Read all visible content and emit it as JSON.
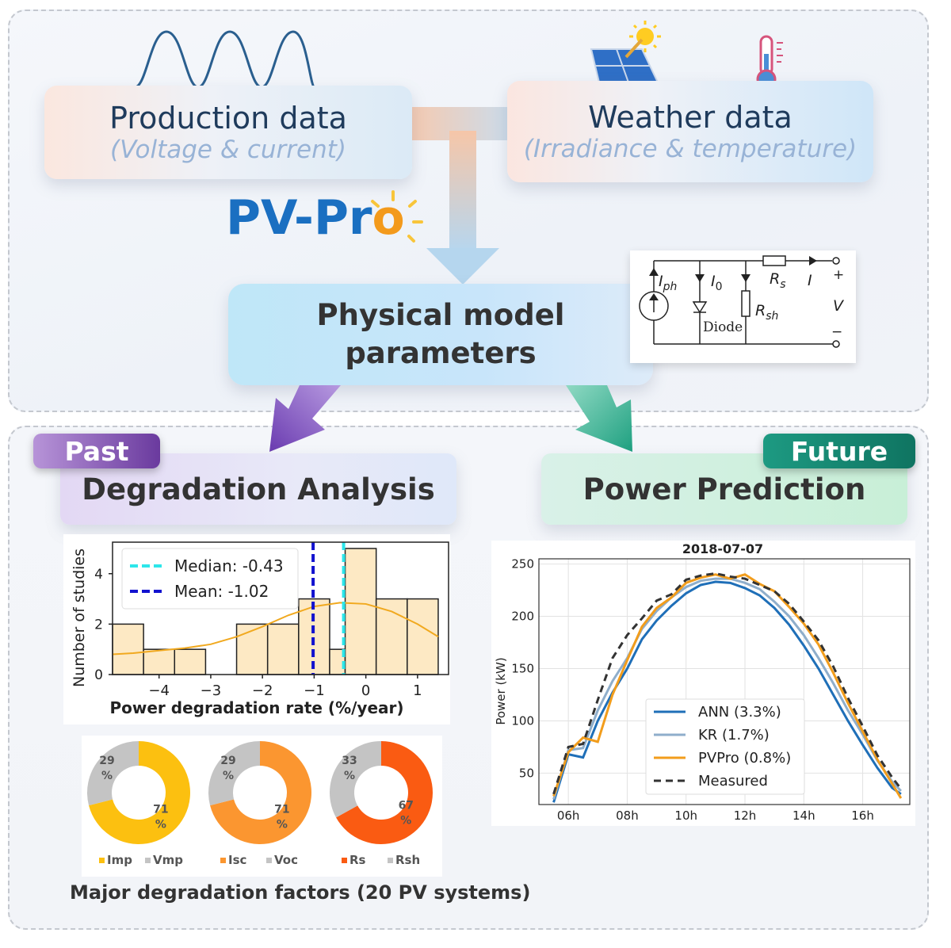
{
  "top": {
    "production": {
      "title": "Production data",
      "subtitle": "(Voltage & current)"
    },
    "weather": {
      "title": "Weather data",
      "subtitle": "(Irradiance & temperature)"
    },
    "logo": {
      "part1": "PV-Pr",
      "part2": "o"
    },
    "model": {
      "line1": "Physical model",
      "line2": "parameters"
    },
    "circuit": {
      "iph": "I",
      "iph_sub": "ph",
      "i0": "I",
      "i0_sub": "0",
      "rs": "R",
      "rs_sub": "s",
      "i": "I",
      "plus": "+",
      "v": "V",
      "minus": "−",
      "rsh": "R",
      "rsh_sub": "sh",
      "diode": "Diode"
    }
  },
  "bottom": {
    "past_tag": "Past",
    "future_tag": "Future",
    "degradation_title": "Degradation Analysis",
    "prediction_title": "Power Prediction",
    "donut_caption": "Major degradation factors (20 PV systems)"
  },
  "histogram": {
    "type": "bar",
    "bins": [
      {
        "x0": -4.9,
        "x1": -4.3,
        "count": 2
      },
      {
        "x0": -4.3,
        "x1": -3.7,
        "count": 1
      },
      {
        "x0": -3.7,
        "x1": -3.1,
        "count": 1
      },
      {
        "x0": -2.5,
        "x1": -1.9,
        "count": 2
      },
      {
        "x0": -1.9,
        "x1": -1.3,
        "count": 2
      },
      {
        "x0": -1.3,
        "x1": -0.7,
        "count": 3
      },
      {
        "x0": -0.7,
        "x1": -0.4,
        "count": 1
      },
      {
        "x0": -0.4,
        "x1": 0.2,
        "count": 5
      },
      {
        "x0": 0.2,
        "x1": 0.8,
        "count": 3
      },
      {
        "x0": 0.8,
        "x1": 1.4,
        "count": 3
      }
    ],
    "kde": [
      [
        -4.9,
        0.8
      ],
      [
        -4.5,
        0.85
      ],
      [
        -4.0,
        0.95
      ],
      [
        -3.5,
        1.05
      ],
      [
        -3.0,
        1.2
      ],
      [
        -2.5,
        1.5
      ],
      [
        -2.0,
        1.9
      ],
      [
        -1.5,
        2.35
      ],
      [
        -1.0,
        2.7
      ],
      [
        -0.5,
        2.85
      ],
      [
        0.0,
        2.8
      ],
      [
        0.5,
        2.5
      ],
      [
        1.0,
        2.0
      ],
      [
        1.4,
        1.5
      ]
    ],
    "median": -0.43,
    "mean": -1.02,
    "legend": [
      "Median: -0.43",
      "Mean: -1.02"
    ],
    "xlabel": "Power degradation rate (%/year)",
    "ylabel": "Number of studies",
    "xlim": [
      -4.9,
      1.6
    ],
    "ylim": [
      0,
      5.25
    ],
    "xticks": [
      -4,
      -3,
      -2,
      -1,
      0,
      1
    ],
    "xtick_labels": [
      "−4",
      "−3",
      "−2",
      "−1",
      "0",
      "1"
    ],
    "yticks": [
      0,
      2,
      4
    ],
    "colors": {
      "bar": "#fde9c4",
      "edge": "#222222",
      "kde": "#f1a91f",
      "median": "#2de6ea",
      "mean": "#1212cf"
    }
  },
  "donuts": [
    {
      "segments": [
        {
          "label": "Imp",
          "pct": 71,
          "color": "#fcc010"
        },
        {
          "label": "Vmp",
          "pct": 29,
          "color": "#c4c4c4"
        }
      ],
      "labels_big": [
        "71",
        "%"
      ],
      "labels_small": [
        "29",
        "%"
      ]
    },
    {
      "segments": [
        {
          "label": "Isc",
          "pct": 71,
          "color": "#fb9630"
        },
        {
          "label": "Voc",
          "pct": 29,
          "color": "#c4c4c4"
        }
      ],
      "labels_big": [
        "71",
        "%"
      ],
      "labels_small": [
        "29",
        "%"
      ]
    },
    {
      "segments": [
        {
          "label": "Rs",
          "pct": 67,
          "color": "#fa5b12"
        },
        {
          "label": "Rsh",
          "pct": 33,
          "color": "#c4c4c4"
        }
      ],
      "labels_big": [
        "67",
        "%"
      ],
      "labels_small": [
        "33",
        "%"
      ]
    }
  ],
  "chart_data": {
    "type": "line",
    "title": "2018-07-07",
    "xlabel": "",
    "ylabel": "Power (kW)",
    "xlim": [
      5.0,
      17.6
    ],
    "ylim": [
      20,
      255
    ],
    "xticks": [
      6,
      8,
      10,
      12,
      14,
      16
    ],
    "xtick_labels": [
      "06h",
      "08h",
      "10h",
      "12h",
      "14h",
      "16h"
    ],
    "yticks": [
      50,
      100,
      150,
      200,
      250
    ],
    "grid": true,
    "legend_position": "lower-right",
    "series": [
      {
        "name": "ANN (3.3%)",
        "color": "#1f6fb8",
        "dash": false,
        "x": [
          5.5,
          6.0,
          6.5,
          7.0,
          7.5,
          8.0,
          8.5,
          9.0,
          9.5,
          10.0,
          10.5,
          11.0,
          11.5,
          12.0,
          12.5,
          13.0,
          13.5,
          14.0,
          14.5,
          15.0,
          15.5,
          16.0,
          16.5,
          17.0,
          17.3
        ],
        "y": [
          22,
          68,
          65,
          100,
          127,
          150,
          178,
          196,
          210,
          222,
          230,
          233,
          232,
          227,
          220,
          208,
          192,
          172,
          150,
          125,
          100,
          77,
          55,
          36,
          30
        ]
      },
      {
        "name": "KR (1.7%)",
        "color": "#8faecb",
        "dash": false,
        "x": [
          5.5,
          6.0,
          6.5,
          7.0,
          7.5,
          8.0,
          8.5,
          9.0,
          9.5,
          10.0,
          10.5,
          11.0,
          11.5,
          12.0,
          12.5,
          13.0,
          13.5,
          14.0,
          14.5,
          15.0,
          15.5,
          16.0,
          16.5,
          17.0,
          17.3
        ],
        "y": [
          25,
          72,
          74,
          110,
          138,
          160,
          188,
          205,
          218,
          228,
          234,
          236,
          236,
          232,
          226,
          214,
          200,
          182,
          160,
          136,
          110,
          87,
          62,
          42,
          33
        ]
      },
      {
        "name": "PVPro (0.8%)",
        "color": "#f29d1c",
        "dash": false,
        "x": [
          5.5,
          6.0,
          6.5,
          7.0,
          7.5,
          8.0,
          8.5,
          9.0,
          9.5,
          10.0,
          10.5,
          11.0,
          11.5,
          12.0,
          12.5,
          13.0,
          13.5,
          14.0,
          14.5,
          15.0,
          15.5,
          16.0,
          16.5,
          17.0,
          17.3
        ],
        "y": [
          28,
          70,
          84,
          80,
          125,
          158,
          190,
          208,
          218,
          232,
          237,
          240,
          236,
          240,
          231,
          224,
          209,
          193,
          173,
          146,
          117,
          90,
          63,
          40,
          26
        ]
      },
      {
        "name": "Measured",
        "color": "#333333",
        "dash": true,
        "x": [
          5.5,
          6.0,
          6.5,
          7.0,
          7.5,
          8.0,
          8.5,
          9.0,
          9.5,
          10.0,
          10.5,
          11.0,
          11.5,
          12.0,
          12.5,
          13.0,
          13.5,
          14.0,
          14.5,
          15.0,
          15.5,
          16.0,
          16.5,
          17.0,
          17.3
        ],
        "y": [
          30,
          75,
          78,
          120,
          160,
          182,
          198,
          215,
          221,
          235,
          239,
          241,
          238,
          236,
          230,
          224,
          212,
          195,
          177,
          152,
          122,
          95,
          67,
          46,
          35
        ]
      }
    ]
  }
}
